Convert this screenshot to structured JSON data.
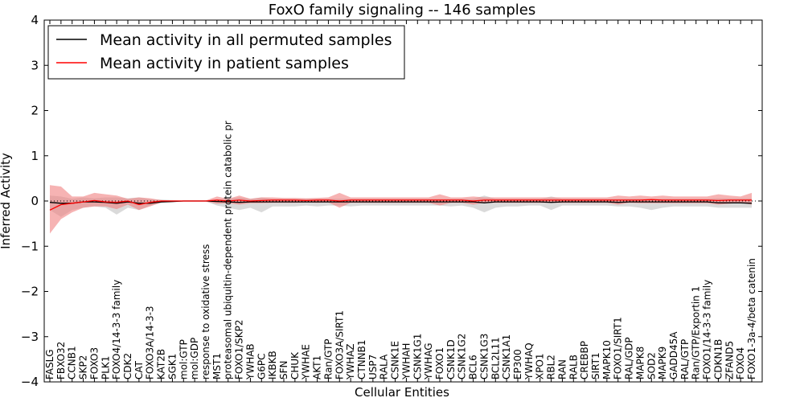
{
  "chart_data": {
    "type": "line",
    "title": "FoxO family signaling -- 146 samples",
    "xlabel": "Cellular Entities",
    "ylabel": "Inferred Activity",
    "ylim": [
      -4,
      4
    ],
    "yticks": [
      "−4",
      "−3",
      "−2",
      "−1",
      "0",
      "1",
      "2",
      "3",
      "4"
    ],
    "legend": {
      "position": "top-left",
      "entries": [
        {
          "label": "Mean activity in all permuted samples",
          "color": "#000000"
        },
        {
          "label": "Mean activity in patient samples",
          "color": "#ff0000"
        }
      ]
    },
    "colors": {
      "permuted_line": "#000000",
      "permuted_band": "#bbbbbb",
      "patient_line": "#ff0000",
      "patient_band": "#f08080"
    },
    "categories": [
      "FASLG",
      "FBXO32",
      "CCNB1",
      "SKP2",
      "FOXO3",
      "PLK1",
      "FOXO4/14-3-3 family",
      "CDK2",
      "CAT",
      "FOXO3A/14-3-3",
      "KAT2B",
      "SGK1",
      "mol:GTP",
      "mol:GDP",
      "response to oxidative stress",
      "MST1",
      "proteasomal ubiquitin-dependent protein catabolic pr",
      "FOXO1/SKP2",
      "YWHAB",
      "G6PC",
      "IKBKB",
      "SFN",
      "CHUK",
      "YWHAE",
      "AKT1",
      "Ran/GTP",
      "FOXO3A/SIRT1",
      "YWHAZ",
      "CTNNB1",
      "USP7",
      "RALA",
      "CSNK1E",
      "YWHAH",
      "CSNK1G1",
      "YWHAG",
      "FOXO1",
      "CSNK1D",
      "CSNK1G2",
      "BCL6",
      "CSNK1G3",
      "BCL2L11",
      "CSNK1A1",
      "EP300",
      "YWHAQ",
      "XPO1",
      "RBL2",
      "RAN",
      "RALB",
      "CREBBP",
      "SIRT1",
      "MAPK10",
      "FOXO1/SIRT1",
      "RAL/GDP",
      "MAPK8",
      "SOD2",
      "MAPK9",
      "GADD45A",
      "RAL/GTP",
      "Ran/GTP/Exportin 1",
      "FOXO1/14-3-3 family",
      "CDKN1B",
      "ZFAND5",
      "FOXO4",
      "FOXO1-3a-4/beta catenin"
    ],
    "series": [
      {
        "name": "Mean activity in all permuted samples",
        "mean": [
          -0.03,
          -0.05,
          -0.05,
          -0.02,
          -0.02,
          -0.03,
          -0.05,
          -0.02,
          -0.05,
          -0.05,
          -0.02,
          -0.01,
          0,
          0,
          0,
          -0.01,
          -0.02,
          -0.03,
          -0.02,
          -0.02,
          -0.02,
          -0.02,
          -0.02,
          -0.02,
          -0.02,
          -0.02,
          -0.02,
          -0.02,
          -0.02,
          -0.02,
          -0.02,
          -0.02,
          -0.02,
          -0.02,
          -0.02,
          -0.02,
          -0.02,
          -0.02,
          -0.02,
          -0.04,
          -0.02,
          -0.02,
          -0.02,
          -0.02,
          -0.02,
          -0.03,
          -0.02,
          -0.02,
          -0.02,
          -0.02,
          -0.02,
          -0.03,
          -0.02,
          -0.02,
          -0.02,
          -0.02,
          -0.02,
          -0.02,
          -0.02,
          -0.02,
          -0.04,
          -0.04,
          -0.04,
          -0.05
        ],
        "upper": [
          0.12,
          0.1,
          0.05,
          0.08,
          0.06,
          0.08,
          0.08,
          0.06,
          0.08,
          0.04,
          0.03,
          0.02,
          0.01,
          0.01,
          0.01,
          0.03,
          0.05,
          0.08,
          0.05,
          0.08,
          0.05,
          0.05,
          0.05,
          0.05,
          0.05,
          0.05,
          0.05,
          0.05,
          0.05,
          0.05,
          0.05,
          0.05,
          0.05,
          0.05,
          0.05,
          0.05,
          0.05,
          0.05,
          0.05,
          0.12,
          0.05,
          0.05,
          0.05,
          0.05,
          0.05,
          0.1,
          0.05,
          0.05,
          0.05,
          0.05,
          0.05,
          0.05,
          0.05,
          0.05,
          0.05,
          0.05,
          0.05,
          0.05,
          0.05,
          0.05,
          0.06,
          0.06,
          0.06,
          0.06
        ],
        "lower": [
          -0.2,
          -0.35,
          -0.2,
          -0.15,
          -0.12,
          -0.15,
          -0.3,
          -0.15,
          -0.2,
          -0.1,
          -0.05,
          -0.03,
          -0.01,
          -0.01,
          -0.01,
          -0.1,
          -0.15,
          -0.2,
          -0.15,
          -0.25,
          -0.12,
          -0.12,
          -0.12,
          -0.1,
          -0.12,
          -0.1,
          -0.1,
          -0.12,
          -0.1,
          -0.1,
          -0.1,
          -0.1,
          -0.1,
          -0.1,
          -0.1,
          -0.1,
          -0.12,
          -0.1,
          -0.15,
          -0.25,
          -0.15,
          -0.12,
          -0.12,
          -0.1,
          -0.1,
          -0.2,
          -0.1,
          -0.1,
          -0.1,
          -0.1,
          -0.1,
          -0.12,
          -0.12,
          -0.15,
          -0.2,
          -0.15,
          -0.12,
          -0.12,
          -0.12,
          -0.12,
          -0.15,
          -0.15,
          -0.15,
          -0.15
        ]
      },
      {
        "name": "Mean activity in patient samples",
        "mean": [
          -0.2,
          -0.08,
          -0.05,
          -0.02,
          0.01,
          -0.02,
          -0.03,
          0,
          -0.08,
          -0.03,
          0,
          0,
          0,
          0,
          0,
          0.02,
          0,
          0.02,
          0,
          0.01,
          0.02,
          0.02,
          0.02,
          0.01,
          0.02,
          0.02,
          0,
          0.02,
          0.02,
          0.02,
          0.02,
          0.02,
          0.02,
          0.02,
          0.02,
          0.02,
          0.02,
          0.02,
          0,
          0.02,
          0.02,
          0.02,
          0.02,
          0.02,
          0.02,
          0.02,
          0.02,
          0.02,
          0.02,
          0.02,
          0.02,
          0.02,
          0.02,
          0.02,
          0.03,
          0.02,
          0.02,
          0.02,
          0.02,
          0.02,
          0.01,
          0.02,
          0.02,
          0.02
        ],
        "upper": [
          0.35,
          0.32,
          0.1,
          0.1,
          0.18,
          0.15,
          0.12,
          0.05,
          0.08,
          0.06,
          0.02,
          0.01,
          0.01,
          0.01,
          0.01,
          0.1,
          0.05,
          0.12,
          0.05,
          0.08,
          0.08,
          0.07,
          0.07,
          0.06,
          0.07,
          0.08,
          0.18,
          0.08,
          0.08,
          0.08,
          0.08,
          0.08,
          0.08,
          0.08,
          0.08,
          0.15,
          0.08,
          0.08,
          0.1,
          0.08,
          0.08,
          0.08,
          0.08,
          0.08,
          0.08,
          0.08,
          0.08,
          0.08,
          0.08,
          0.08,
          0.08,
          0.12,
          0.1,
          0.12,
          0.1,
          0.12,
          0.1,
          0.1,
          0.1,
          0.1,
          0.15,
          0.12,
          0.1,
          0.18
        ],
        "lower": [
          -0.72,
          -0.4,
          -0.25,
          -0.15,
          -0.12,
          -0.12,
          -0.18,
          -0.08,
          -0.2,
          -0.12,
          -0.03,
          -0.02,
          -0.01,
          -0.01,
          -0.01,
          -0.06,
          -0.05,
          -0.08,
          -0.05,
          -0.05,
          -0.04,
          -0.04,
          -0.04,
          -0.03,
          -0.04,
          -0.03,
          -0.15,
          -0.04,
          -0.04,
          -0.04,
          -0.04,
          -0.04,
          -0.04,
          -0.04,
          -0.04,
          -0.1,
          -0.04,
          -0.04,
          -0.08,
          -0.04,
          -0.04,
          -0.04,
          -0.04,
          -0.04,
          -0.04,
          -0.04,
          -0.04,
          -0.04,
          -0.04,
          -0.04,
          -0.04,
          -0.08,
          -0.04,
          -0.05,
          -0.05,
          -0.05,
          -0.05,
          -0.05,
          -0.05,
          -0.05,
          -0.08,
          -0.06,
          -0.04,
          -0.08
        ]
      }
    ]
  }
}
